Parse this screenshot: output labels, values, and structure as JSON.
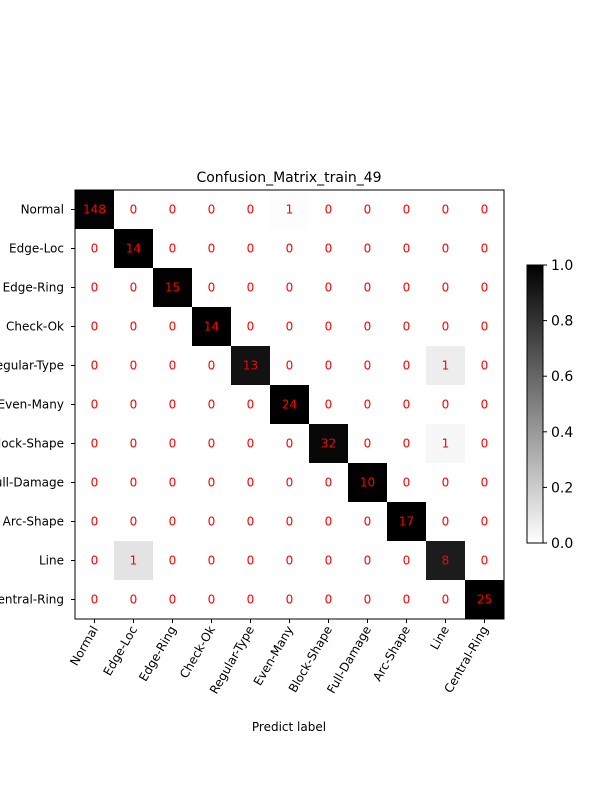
{
  "chart_data": {
    "type": "heatmap",
    "title": "Confusion_Matrix_train_49",
    "xlabel": "Predict label",
    "ylabel": "",
    "x_tick_labels": [
      "Normal",
      "Edge-Loc",
      "Edge-Ring",
      "Check-Ok",
      "Regular-Type",
      "Even-Many",
      "Block-Shape",
      "Full-Damage",
      "Arc-Shape",
      "Line",
      "Central-Ring"
    ],
    "y_tick_labels": [
      "Normal",
      "Edge-Loc",
      "Edge-Ring",
      "Check-Ok",
      "Regular-Type",
      "Even-Many",
      "Block-Shape",
      "Full-Damage",
      "Arc-Shape",
      "Line",
      "Central-Ring"
    ],
    "matrix": [
      [
        148,
        0,
        0,
        0,
        0,
        1,
        0,
        0,
        0,
        0,
        0
      ],
      [
        0,
        14,
        0,
        0,
        0,
        0,
        0,
        0,
        0,
        0,
        0
      ],
      [
        0,
        0,
        15,
        0,
        0,
        0,
        0,
        0,
        0,
        0,
        0
      ],
      [
        0,
        0,
        0,
        14,
        0,
        0,
        0,
        0,
        0,
        0,
        0
      ],
      [
        0,
        0,
        0,
        0,
        13,
        0,
        0,
        0,
        0,
        1,
        0
      ],
      [
        0,
        0,
        0,
        0,
        0,
        24,
        0,
        0,
        0,
        0,
        0
      ],
      [
        0,
        0,
        0,
        0,
        0,
        0,
        32,
        0,
        0,
        1,
        0
      ],
      [
        0,
        0,
        0,
        0,
        0,
        0,
        0,
        10,
        0,
        0,
        0
      ],
      [
        0,
        0,
        0,
        0,
        0,
        0,
        0,
        0,
        17,
        0,
        0
      ],
      [
        0,
        1,
        0,
        0,
        0,
        0,
        0,
        0,
        0,
        8,
        0
      ],
      [
        0,
        0,
        0,
        0,
        0,
        0,
        0,
        0,
        0,
        0,
        25
      ]
    ],
    "color_scale": "row-normalized, white (0.0) to black (1.0)",
    "colorbar": {
      "range": [
        0.0,
        1.0
      ],
      "tick_labels": [
        "0.0",
        "0.2",
        "0.4",
        "0.6",
        "0.8",
        "1.0"
      ],
      "tick_values": [
        0.0,
        0.2,
        0.4,
        0.6,
        0.8,
        1.0
      ]
    },
    "annotation_color": "#ff0000"
  }
}
